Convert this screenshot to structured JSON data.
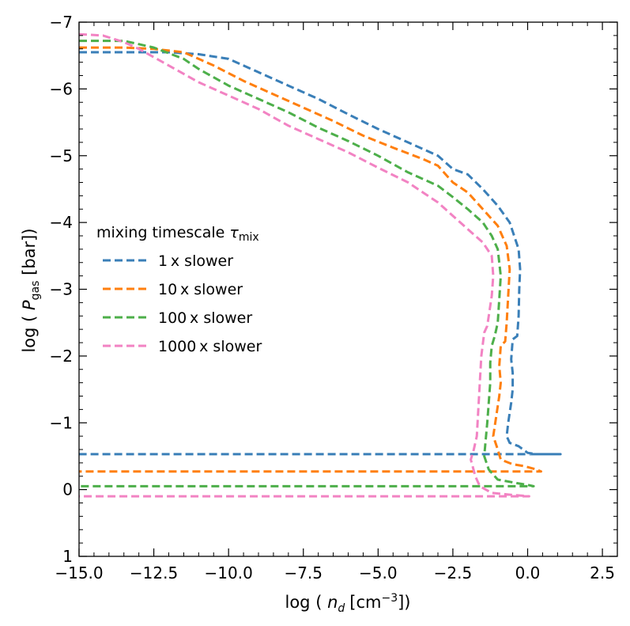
{
  "chart_data": {
    "type": "line",
    "title": "",
    "xlabel": {
      "prefix": "log ( ",
      "var": "n",
      "sub": "d",
      "unit": "[cm",
      "sup": "−3",
      "suffix": "])"
    },
    "ylabel": {
      "prefix": "log ( ",
      "var": "P",
      "sub": "gas",
      "suffix": " [bar])"
    },
    "xlim": [
      -15.0,
      3.0
    ],
    "ylim": [
      1.0,
      -7.0
    ],
    "y_inverted": true,
    "x_ticks": [
      -15.0,
      -12.5,
      -10.0,
      -7.5,
      -5.0,
      -2.5,
      0.0,
      2.5
    ],
    "x_tick_labels": [
      "−15.0",
      "−12.5",
      "−10.0",
      "−7.5",
      "−5.0",
      "−2.5",
      "0.0",
      "2.5"
    ],
    "y_ticks": [
      -7,
      -6,
      -5,
      -4,
      -3,
      -2,
      -1,
      0,
      1
    ],
    "y_tick_labels": [
      "−7",
      "−6",
      "−5",
      "−4",
      "−3",
      "−2",
      "−1",
      "0",
      "1"
    ],
    "grid": false,
    "legend": {
      "title_text": "mixing timescale ",
      "title_symbol": "τ",
      "title_sub": "mix",
      "location": "center-left"
    },
    "series": [
      {
        "name": "1 x slower",
        "color": "#3a7fb8",
        "points": [
          [
            -15.0,
            -6.55
          ],
          [
            -13.5,
            -6.55
          ],
          [
            -12.0,
            -6.55
          ],
          [
            -11.0,
            -6.52
          ],
          [
            -10.0,
            -6.45
          ],
          [
            -9.0,
            -6.25
          ],
          [
            -8.0,
            -6.05
          ],
          [
            -7.0,
            -5.85
          ],
          [
            -6.0,
            -5.62
          ],
          [
            -5.0,
            -5.4
          ],
          [
            -4.0,
            -5.2
          ],
          [
            -3.0,
            -5.0
          ],
          [
            -2.5,
            -4.8
          ],
          [
            -2.0,
            -4.72
          ],
          [
            -1.5,
            -4.5
          ],
          [
            -1.0,
            -4.25
          ],
          [
            -0.6,
            -4.0
          ],
          [
            -0.3,
            -3.6
          ],
          [
            -0.25,
            -3.3
          ],
          [
            -0.28,
            -3.0
          ],
          [
            -0.3,
            -2.6
          ],
          [
            -0.35,
            -2.3
          ],
          [
            -0.5,
            -2.25
          ],
          [
            -0.55,
            -1.95
          ],
          [
            -0.5,
            -1.75
          ],
          [
            -0.5,
            -1.5
          ],
          [
            -0.55,
            -1.3
          ],
          [
            -0.6,
            -1.15
          ],
          [
            -0.65,
            -1.0
          ],
          [
            -0.7,
            -0.8
          ],
          [
            -0.6,
            -0.7
          ],
          [
            -0.3,
            -0.65
          ],
          [
            0.0,
            -0.55
          ],
          [
            0.3,
            -0.53
          ],
          [
            0.6,
            -0.53
          ],
          [
            1.1,
            -0.53
          ],
          [
            0.6,
            -0.53
          ],
          [
            -1.0,
            -0.53
          ],
          [
            -5.0,
            -0.53
          ],
          [
            -10.0,
            -0.53
          ],
          [
            -15.0,
            -0.53
          ]
        ]
      },
      {
        "name": "10 x slower",
        "color": "#ff7f0e",
        "points": [
          [
            -15.0,
            -6.62
          ],
          [
            -13.5,
            -6.62
          ],
          [
            -12.5,
            -6.6
          ],
          [
            -11.5,
            -6.55
          ],
          [
            -10.5,
            -6.35
          ],
          [
            -9.5,
            -6.12
          ],
          [
            -8.5,
            -5.92
          ],
          [
            -7.5,
            -5.72
          ],
          [
            -6.5,
            -5.52
          ],
          [
            -5.5,
            -5.3
          ],
          [
            -4.5,
            -5.12
          ],
          [
            -3.5,
            -4.95
          ],
          [
            -3.0,
            -4.85
          ],
          [
            -2.5,
            -4.6
          ],
          [
            -2.0,
            -4.45
          ],
          [
            -1.5,
            -4.2
          ],
          [
            -1.0,
            -3.95
          ],
          [
            -0.7,
            -3.65
          ],
          [
            -0.6,
            -3.3
          ],
          [
            -0.65,
            -2.9
          ],
          [
            -0.7,
            -2.5
          ],
          [
            -0.75,
            -2.22
          ],
          [
            -0.9,
            -2.15
          ],
          [
            -0.95,
            -1.85
          ],
          [
            -0.9,
            -1.6
          ],
          [
            -0.95,
            -1.4
          ],
          [
            -1.0,
            -1.25
          ],
          [
            -1.05,
            -1.1
          ],
          [
            -1.1,
            -0.95
          ],
          [
            -1.15,
            -0.8
          ],
          [
            -1.0,
            -0.6
          ],
          [
            -0.9,
            -0.45
          ],
          [
            -0.5,
            -0.38
          ],
          [
            -0.1,
            -0.35
          ],
          [
            0.3,
            -0.3
          ],
          [
            0.45,
            -0.27
          ],
          [
            0.2,
            -0.27
          ],
          [
            -1.6,
            -0.27
          ],
          [
            -5.0,
            -0.27
          ],
          [
            -10.0,
            -0.27
          ],
          [
            -15.0,
            -0.27
          ]
        ]
      },
      {
        "name": "100 x slower",
        "color": "#4daf4a",
        "points": [
          [
            -15.0,
            -6.72
          ],
          [
            -13.5,
            -6.72
          ],
          [
            -12.5,
            -6.62
          ],
          [
            -11.5,
            -6.45
          ],
          [
            -11.0,
            -6.3
          ],
          [
            -10.0,
            -6.05
          ],
          [
            -9.0,
            -5.85
          ],
          [
            -8.0,
            -5.65
          ],
          [
            -7.0,
            -5.42
          ],
          [
            -6.0,
            -5.22
          ],
          [
            -5.0,
            -5.0
          ],
          [
            -4.0,
            -4.75
          ],
          [
            -3.0,
            -4.55
          ],
          [
            -2.5,
            -4.38
          ],
          [
            -2.0,
            -4.2
          ],
          [
            -1.5,
            -4.0
          ],
          [
            -1.2,
            -3.8
          ],
          [
            -1.0,
            -3.6
          ],
          [
            -0.9,
            -3.2
          ],
          [
            -0.95,
            -2.85
          ],
          [
            -1.0,
            -2.5
          ],
          [
            -1.1,
            -2.3
          ],
          [
            -1.2,
            -2.15
          ],
          [
            -1.25,
            -1.9
          ],
          [
            -1.25,
            -1.6
          ],
          [
            -1.3,
            -1.3
          ],
          [
            -1.35,
            -1.0
          ],
          [
            -1.4,
            -0.75
          ],
          [
            -1.45,
            -0.5
          ],
          [
            -1.3,
            -0.3
          ],
          [
            -1.0,
            -0.15
          ],
          [
            -0.4,
            -0.1
          ],
          [
            0.0,
            -0.07
          ],
          [
            0.2,
            -0.05
          ],
          [
            -0.5,
            -0.05
          ],
          [
            -3.0,
            -0.05
          ],
          [
            -8.0,
            -0.05
          ],
          [
            -15.0,
            -0.05
          ]
        ]
      },
      {
        "name": "1000 x slower",
        "color": "#f283c3",
        "points": [
          [
            -15.0,
            -6.82
          ],
          [
            -14.2,
            -6.8
          ],
          [
            -13.5,
            -6.7
          ],
          [
            -13.0,
            -6.6
          ],
          [
            -12.0,
            -6.35
          ],
          [
            -11.0,
            -6.1
          ],
          [
            -10.0,
            -5.9
          ],
          [
            -9.0,
            -5.7
          ],
          [
            -8.0,
            -5.45
          ],
          [
            -7.0,
            -5.25
          ],
          [
            -6.0,
            -5.05
          ],
          [
            -5.0,
            -4.82
          ],
          [
            -4.0,
            -4.6
          ],
          [
            -3.5,
            -4.45
          ],
          [
            -3.0,
            -4.3
          ],
          [
            -2.5,
            -4.1
          ],
          [
            -2.0,
            -3.9
          ],
          [
            -1.5,
            -3.7
          ],
          [
            -1.2,
            -3.5
          ],
          [
            -1.15,
            -3.2
          ],
          [
            -1.2,
            -2.9
          ],
          [
            -1.3,
            -2.6
          ],
          [
            -1.35,
            -2.45
          ],
          [
            -1.45,
            -2.35
          ],
          [
            -1.55,
            -2.0
          ],
          [
            -1.6,
            -1.6
          ],
          [
            -1.65,
            -1.2
          ],
          [
            -1.7,
            -0.8
          ],
          [
            -1.8,
            -0.6
          ],
          [
            -1.9,
            -0.45
          ],
          [
            -1.75,
            -0.2
          ],
          [
            -1.6,
            -0.05
          ],
          [
            -1.2,
            0.05
          ],
          [
            -0.5,
            0.08
          ],
          [
            0.05,
            0.1
          ],
          [
            -1.0,
            0.1
          ],
          [
            -5.0,
            0.1
          ],
          [
            -10.0,
            0.1
          ],
          [
            -15.0,
            0.1
          ]
        ]
      }
    ]
  }
}
